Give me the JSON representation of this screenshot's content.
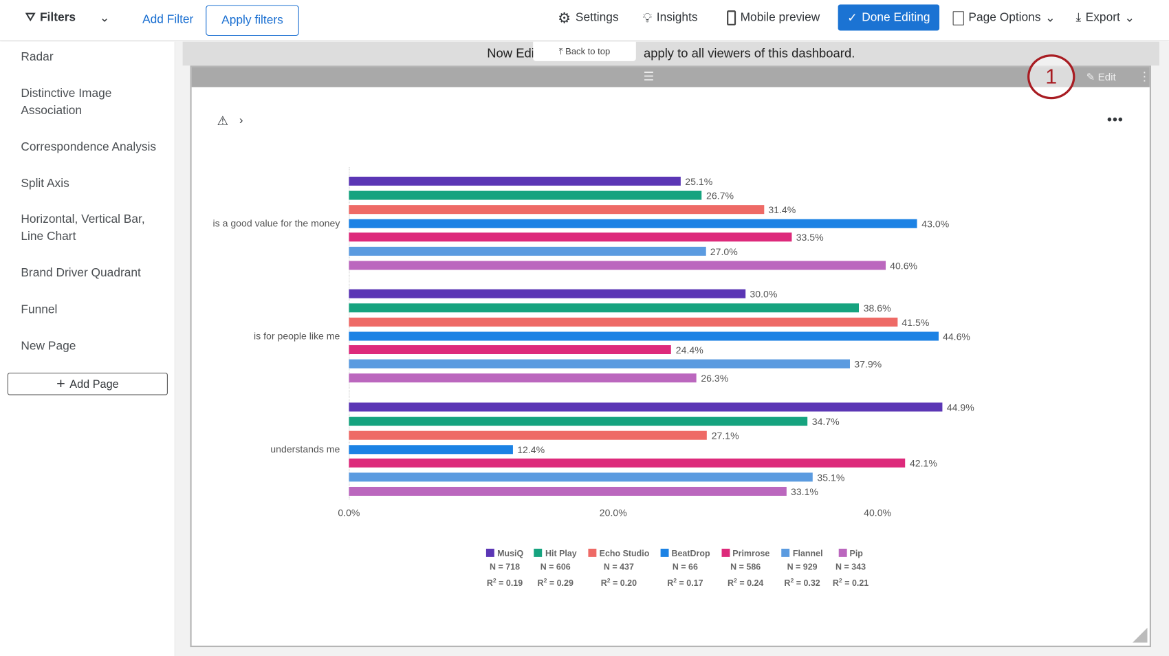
{
  "topbar": {
    "filters": "Filters",
    "add_filter": "Add Filter",
    "apply_filters": "Apply filters",
    "settings": "Settings",
    "insights": "Insights",
    "mobile_preview": "Mobile preview",
    "done_editing": "Done Editing",
    "page_options": "Page Options",
    "export": "Export"
  },
  "sidebar": {
    "items": [
      "Radar",
      "Distinctive Image Association",
      "Correspondence Analysis",
      "Split Axis",
      "Horizontal, Vertical Bar, Line Chart",
      "Brand Driver Quadrant",
      "Funnel",
      "New Page"
    ],
    "add_page": "Add Page"
  },
  "banner": {
    "left": "Now Edit",
    "right": "apply to all viewers of this dashboard.",
    "back_to_top": "Back to top"
  },
  "widget": {
    "edit": "Edit",
    "annotation": "1"
  },
  "chart_data": {
    "type": "bar",
    "orientation": "horizontal",
    "categories": [
      "is a good value for the money",
      "is for people like me",
      "understands me"
    ],
    "xlim": [
      0,
      45
    ],
    "xticks": [
      "0.0%",
      "20.0%",
      "40.0%"
    ],
    "xtick_values": [
      0,
      20,
      40
    ],
    "series": [
      {
        "name": "MusiQ",
        "color": "#5b36b5",
        "n": "N = 718",
        "r2": "0.19",
        "values": [
          25.1,
          30.0,
          44.9
        ]
      },
      {
        "name": "Hit Play",
        "color": "#16a37f",
        "n": "N = 606",
        "r2": "0.29",
        "values": [
          26.7,
          38.6,
          34.7
        ]
      },
      {
        "name": "Echo Studio",
        "color": "#ee6a66",
        "n": "N = 437",
        "r2": "0.20",
        "values": [
          31.4,
          41.5,
          27.1
        ]
      },
      {
        "name": "BeatDrop",
        "color": "#1c82e4",
        "n": "N = 66",
        "r2": "0.17",
        "values": [
          43.0,
          44.6,
          12.4
        ]
      },
      {
        "name": "Primrose",
        "color": "#dd2a7b",
        "n": "N = 586",
        "r2": "0.24",
        "values": [
          33.5,
          24.4,
          42.1
        ]
      },
      {
        "name": "Flannel",
        "color": "#5b9be0",
        "n": "N = 929",
        "r2": "0.32",
        "values": [
          27.0,
          37.9,
          35.1
        ]
      },
      {
        "name": "Pip",
        "color": "#bb67be",
        "n": "N = 343",
        "r2": "0.21",
        "values": [
          40.6,
          26.3,
          33.1
        ]
      }
    ],
    "legend": "bottom"
  }
}
